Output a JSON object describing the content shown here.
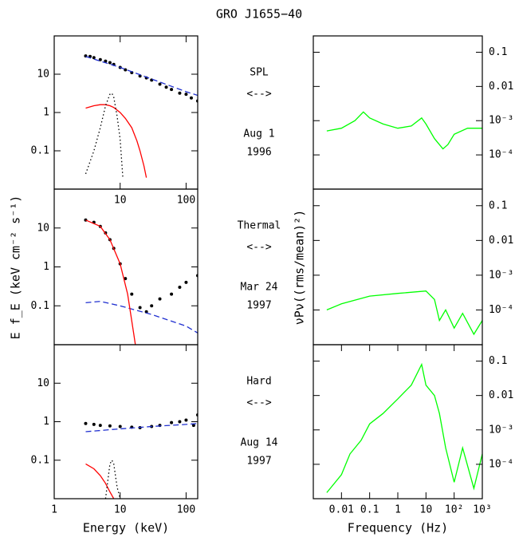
{
  "title": "GRO J1655−40",
  "chart_data": [
    {
      "type": "line",
      "xlog": true,
      "ylog": true,
      "xlim": [
        1,
        150
      ],
      "ylim": [
        0.01,
        100
      ],
      "xticks": [
        10,
        100
      ],
      "yticks": [
        0.1,
        1,
        10
      ],
      "annotations": [
        "SPL",
        "<-->",
        "Aug 1",
        "1996"
      ],
      "series": [
        {
          "style": "points",
          "color": "#000000",
          "x": [
            3,
            3.5,
            4,
            5,
            6,
            7,
            8,
            10,
            12,
            15,
            20,
            25,
            30,
            40,
            50,
            60,
            80,
            100,
            120,
            150
          ],
          "values": [
            30,
            29,
            27,
            24,
            22,
            20,
            18,
            15,
            13,
            11,
            9,
            8,
            7,
            5.5,
            4.6,
            4,
            3.2,
            3,
            2.4,
            2
          ]
        },
        {
          "style": "dashed",
          "color": "#2030d0",
          "x": [
            3,
            10,
            30,
            100,
            150
          ],
          "values": [
            29,
            15,
            7.5,
            3.5,
            2.8
          ]
        },
        {
          "style": "solid",
          "color": "#ff0000",
          "x": [
            3,
            4,
            5,
            6,
            7,
            8,
            10,
            12,
            15,
            18,
            20,
            23,
            25
          ],
          "values": [
            1.3,
            1.5,
            1.6,
            1.6,
            1.5,
            1.35,
            1,
            0.7,
            0.4,
            0.18,
            0.1,
            0.04,
            0.02
          ]
        },
        {
          "style": "dotted",
          "color": "#000000",
          "x": [
            3,
            4,
            5,
            6,
            7,
            7.5,
            8,
            9,
            10,
            11
          ],
          "values": [
            0.025,
            0.1,
            0.4,
            1.5,
            3,
            3.2,
            2.5,
            0.8,
            0.2,
            0.02
          ]
        }
      ]
    },
    {
      "type": "line",
      "xlog": true,
      "ylog": true,
      "xlim": [
        0.001,
        1000
      ],
      "ylim": [
        1e-05,
        0.3
      ],
      "yticks": [
        0.1,
        0.01,
        {
          "value": 0.001,
          "label": "10⁻³"
        },
        {
          "value": 0.0001,
          "label": "10⁻⁴"
        }
      ],
      "series": [
        {
          "style": "solid",
          "color": "#00ff00",
          "x": [
            0.003,
            0.01,
            0.03,
            0.06,
            0.1,
            0.3,
            1,
            3,
            7,
            10,
            20,
            40,
            60,
            100,
            300,
            1000
          ],
          "values": [
            0.0005,
            0.0006,
            0.001,
            0.0018,
            0.0012,
            0.0008,
            0.0006,
            0.0007,
            0.0012,
            0.0008,
            0.0003,
            0.00015,
            0.0002,
            0.0004,
            0.0006,
            0.0006
          ]
        }
      ]
    },
    {
      "type": "line",
      "xlog": true,
      "ylog": true,
      "xlim": [
        1,
        150
      ],
      "ylim": [
        0.01,
        100
      ],
      "yticks": [
        0.1,
        1,
        10
      ],
      "ylabel": "E f_E (keV cm⁻² s⁻¹)",
      "annotations": [
        "Thermal",
        "<-->",
        "Mar 24",
        "1997"
      ],
      "series": [
        {
          "style": "points",
          "color": "#000000",
          "x": [
            3,
            4,
            5,
            6,
            7,
            8,
            10,
            12,
            15,
            20,
            25,
            30,
            40,
            60,
            80,
            100,
            150
          ],
          "values": [
            16,
            14,
            11,
            7.5,
            5,
            3,
            1.2,
            0.5,
            0.2,
            0.09,
            0.07,
            0.1,
            0.15,
            0.2,
            0.3,
            0.4,
            0.6
          ]
        },
        {
          "style": "dashed",
          "color": "#2030d0",
          "x": [
            3,
            5,
            10,
            30,
            100,
            150
          ],
          "values": [
            0.12,
            0.13,
            0.1,
            0.06,
            0.03,
            0.02
          ]
        },
        {
          "style": "solid",
          "color": "#ff0000",
          "x": [
            3,
            5,
            7,
            10,
            13,
            16,
            17
          ],
          "values": [
            16,
            11,
            5,
            1.2,
            0.2,
            0.02,
            0.01
          ]
        }
      ]
    },
    {
      "type": "line",
      "xlog": true,
      "ylog": true,
      "xlim": [
        0.001,
        1000
      ],
      "ylim": [
        1e-05,
        0.3
      ],
      "yticks": [
        0.1,
        0.01,
        {
          "value": 0.001,
          "label": "10⁻³"
        },
        {
          "value": 0.0001,
          "label": "10⁻⁴"
        }
      ],
      "ylabel": "νPν((rms/mean)²)",
      "series": [
        {
          "style": "solid",
          "color": "#00ff00",
          "x": [
            0.003,
            0.01,
            0.1,
            1,
            10,
            20,
            30,
            50,
            100,
            200,
            500,
            1000
          ],
          "values": [
            0.0001,
            0.00015,
            0.00025,
            0.0003,
            0.00035,
            0.0002,
            5e-05,
            0.0001,
            3e-05,
            8e-05,
            2e-05,
            5e-05
          ]
        }
      ]
    },
    {
      "type": "line",
      "xlog": true,
      "ylog": true,
      "xlim": [
        1,
        150
      ],
      "ylim": [
        0.01,
        100
      ],
      "xticks": [
        1,
        10,
        100
      ],
      "yticks": [
        0.1,
        1,
        10
      ],
      "xlabel": "Energy (keV)",
      "annotations": [
        "Hard",
        "<-->",
        "Aug 14",
        "1997"
      ],
      "series": [
        {
          "style": "points",
          "color": "#000000",
          "x": [
            3,
            4,
            5,
            7,
            10,
            15,
            20,
            30,
            40,
            60,
            80,
            100,
            130,
            150
          ],
          "values": [
            0.9,
            0.85,
            0.8,
            0.78,
            0.75,
            0.72,
            0.7,
            0.75,
            0.8,
            0.95,
            1,
            1.1,
            0.8,
            1.5
          ]
        },
        {
          "style": "dashed",
          "color": "#2030d0",
          "x": [
            3,
            10,
            30,
            100,
            150
          ],
          "values": [
            0.55,
            0.65,
            0.75,
            0.85,
            0.9
          ]
        },
        {
          "style": "solid",
          "color": "#ff0000",
          "x": [
            3,
            4,
            5,
            6,
            7,
            8
          ],
          "values": [
            0.08,
            0.06,
            0.04,
            0.025,
            0.015,
            0.01
          ]
        },
        {
          "style": "dotted",
          "color": "#000000",
          "x": [
            6,
            7,
            7.5,
            8,
            9,
            10
          ],
          "values": [
            0.01,
            0.08,
            0.1,
            0.08,
            0.02,
            0.01
          ]
        }
      ]
    },
    {
      "type": "line",
      "xlog": true,
      "ylog": true,
      "xlim": [
        0.001,
        1000
      ],
      "ylim": [
        1e-05,
        0.3
      ],
      "xticks": [
        0.01,
        0.1,
        1,
        10,
        {
          "value": 100,
          "label": "10²"
        },
        {
          "value": 1000,
          "label": "10³"
        }
      ],
      "yticks": [
        0.1,
        0.01,
        {
          "value": 0.001,
          "label": "10⁻³"
        },
        {
          "value": 0.0001,
          "label": "10⁻⁴"
        }
      ],
      "xlabel": "Frequency (Hz)",
      "series": [
        {
          "style": "solid",
          "color": "#00ff00",
          "x": [
            0.003,
            0.01,
            0.02,
            0.05,
            0.1,
            0.3,
            1,
            3,
            7,
            10,
            20,
            30,
            50,
            100,
            200,
            500,
            1000
          ],
          "values": [
            1.5e-05,
            5e-05,
            0.0002,
            0.0005,
            0.0015,
            0.003,
            0.008,
            0.02,
            0.08,
            0.02,
            0.01,
            0.003,
            0.0003,
            3e-05,
            0.0003,
            2e-05,
            0.0002
          ]
        }
      ]
    }
  ]
}
